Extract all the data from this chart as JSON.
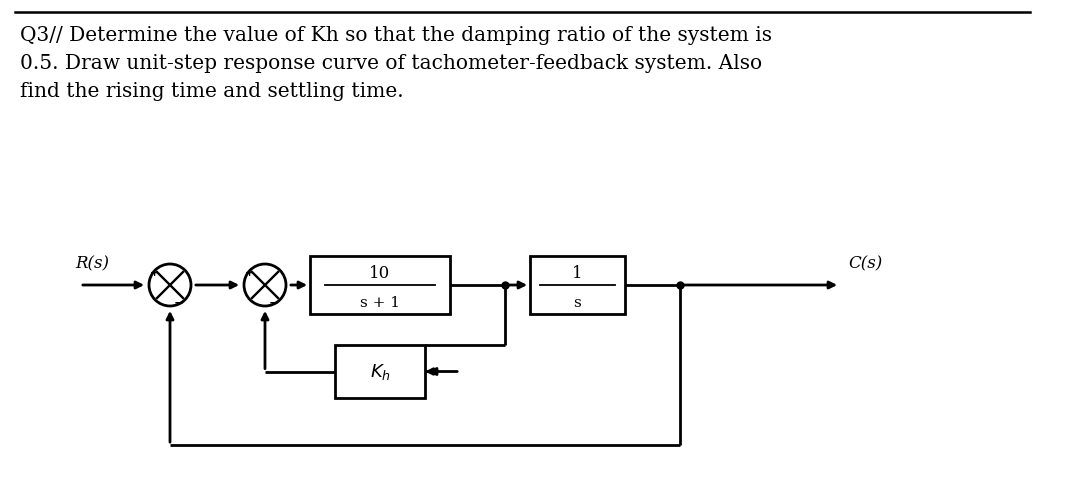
{
  "title_text": "Q3// Determine the value of Kh so that the damping ratio of the system is\n0.5. Draw unit-step response curve of tachometer-feedback system. Also\nfind the rising time and settling time.",
  "title_fontsize": 14.5,
  "bg_color": "#ffffff",
  "line_color": "#000000",
  "box_color": "#ffffff",
  "block1_numerator": "10",
  "block1_denominator": "s + 1",
  "block2_numerator": "1",
  "block2_denominator": "s",
  "feedback_label": "K_h",
  "Rs_label": "R(s)",
  "Cs_label": "C(s)"
}
